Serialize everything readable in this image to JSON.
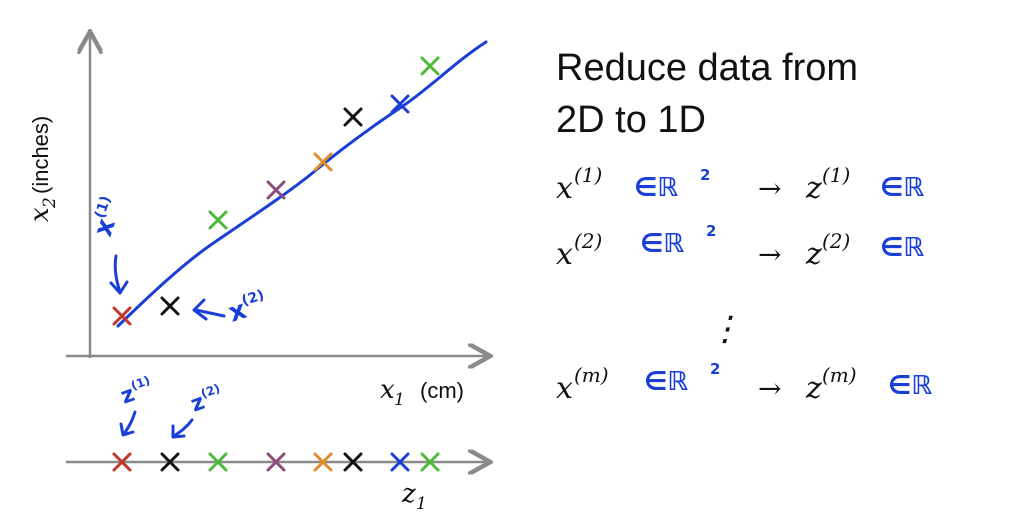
{
  "plot2d": {
    "ylabel_var": "x",
    "ylabel_sub": "2",
    "ylabel_unit": "(inches)",
    "xlabel_var": "x",
    "xlabel_sub": "1",
    "xlabel_unit": "(cm)",
    "ann_x1": "x",
    "ann_x1_sup": "(1)",
    "ann_x2": "x",
    "ann_x2_sup": "(2)"
  },
  "plot1d": {
    "axis_var": "z",
    "axis_sub": "1",
    "ann_z1": "z",
    "ann_z1_sup": "(1)",
    "ann_z2": "z",
    "ann_z2_sup": "(2)"
  },
  "heading": {
    "line1": "Reduce data from",
    "line2": "2D to 1D"
  },
  "mappings": [
    {
      "x": "x",
      "xsup": "(1)",
      "in1": "∈ℝ",
      "in1sup": "2",
      "arrow": "→",
      "z": "z",
      "zsup": "(1)",
      "in2": "∈ℝ"
    },
    {
      "x": "x",
      "xsup": "(2)",
      "in1": "∈ℝ",
      "in1sup": "2",
      "arrow": "→",
      "z": "z",
      "zsup": "(2)",
      "in2": "∈ℝ"
    },
    {
      "x": "x",
      "xsup": "(m)",
      "in1": "∈ℝ",
      "in1sup": "2",
      "arrow": "→",
      "z": "z",
      "zsup": "(m)",
      "in2": "∈ℝ"
    }
  ],
  "ellipsis": "⋮",
  "colors": {
    "red": "#c0392b",
    "black": "#111111",
    "green": "#4cbb3a",
    "purple": "#8e4a7a",
    "orange": "#e08a2c",
    "blue": "#1a3fd6",
    "axis": "#8a8a8a"
  },
  "points": [
    {
      "name": "point-red",
      "color": "red"
    },
    {
      "name": "point-black-1",
      "color": "black"
    },
    {
      "name": "point-green-1",
      "color": "green"
    },
    {
      "name": "point-purple",
      "color": "purple"
    },
    {
      "name": "point-orange",
      "color": "orange"
    },
    {
      "name": "point-black-2",
      "color": "black"
    },
    {
      "name": "point-blue",
      "color": "blue"
    },
    {
      "name": "point-green-2",
      "color": "green"
    }
  ]
}
